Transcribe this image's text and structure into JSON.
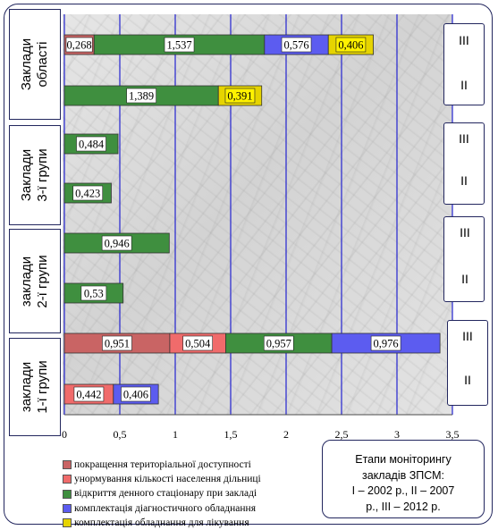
{
  "chart_data": {
    "type": "bar",
    "orientation": "horizontal",
    "stacked": true,
    "xlim": [
      0,
      3.5
    ],
    "x_ticks": [
      "0",
      "0,5",
      "1",
      "1,5",
      "2",
      "2,5",
      "3",
      "3,5"
    ],
    "grid": "vertical",
    "legend_position": "bottom-left",
    "series": [
      {
        "name": "покращення територіальної доступності",
        "color": "#c96464"
      },
      {
        "name": "унормування кількості населення дільниці",
        "color": "#f06b6b"
      },
      {
        "name": "відкриття денного стаціонару при закладі",
        "color": "#3f8f3f"
      },
      {
        "name": "комплектація діагностичного обладнання",
        "color": "#5c5cf0"
      },
      {
        "name": "комплектація обладнання для лікування",
        "color": "#e6d400"
      }
    ],
    "groups": [
      {
        "label": "Заклади області",
        "rows": [
          {
            "stage": "III",
            "segments": [
              {
                "series": 0,
                "value": 0.268,
                "label": "0,268"
              },
              {
                "series": 2,
                "value": 1.537,
                "label": "1,537"
              },
              {
                "series": 3,
                "value": 0.576,
                "label": "0,576"
              },
              {
                "series": 4,
                "value": 0.406,
                "label": "0,406"
              }
            ]
          },
          {
            "stage": "II",
            "segments": [
              {
                "series": 2,
                "value": 1.389,
                "label": "1,389"
              },
              {
                "series": 4,
                "value": 0.391,
                "label": "0,391"
              }
            ]
          }
        ]
      },
      {
        "label": "Заклади 3-ї групи",
        "rows": [
          {
            "stage": "III",
            "segments": [
              {
                "series": 2,
                "value": 0.484,
                "label": "0,484"
              }
            ]
          },
          {
            "stage": "II",
            "segments": [
              {
                "series": 2,
                "value": 0.423,
                "label": "0,423"
              }
            ]
          }
        ]
      },
      {
        "label": "заклади 2-ї групи",
        "rows": [
          {
            "stage": "III",
            "segments": [
              {
                "series": 2,
                "value": 0.946,
                "label": "0,946"
              }
            ]
          },
          {
            "stage": "II",
            "segments": [
              {
                "series": 2,
                "value": 0.53,
                "label": "0,53"
              }
            ]
          }
        ]
      },
      {
        "label": "заклади 1-ї групи",
        "rows": [
          {
            "stage": "III",
            "segments": [
              {
                "series": 0,
                "value": 0.951,
                "label": "0,951"
              },
              {
                "series": 1,
                "value": 0.504,
                "label": "0,504"
              },
              {
                "series": 2,
                "value": 0.957,
                "label": "0,957"
              },
              {
                "series": 3,
                "value": 0.976,
                "label": "0,976"
              }
            ]
          },
          {
            "stage": "II",
            "segments": [
              {
                "series": 1,
                "value": 0.442,
                "label": "0,442"
              },
              {
                "series": 3,
                "value": 0.406,
                "label": "0,406"
              }
            ]
          }
        ]
      }
    ]
  },
  "group_labels": {
    "oblast_line1": "Заклади",
    "oblast_line2": "області",
    "g3_line1": "Заклади",
    "g3_line2": "3-ї групи",
    "g2_line1": "заклади",
    "g2_line2": "2-ї групи",
    "g1_line1": "заклади",
    "g1_line2": "1-ї групи"
  },
  "stage_labels": {
    "oblast_iii": "III",
    "oblast_ii": "II",
    "g3_iii": "III",
    "g3_ii": "II",
    "g2_iii": "III",
    "g2_ii": "II",
    "g1_iii": "III",
    "g1_ii": "II"
  },
  "legend": {
    "item_1": "покращення територіальної доступності",
    "item_2": "унормування кількості населення дільниці",
    "item_3": "відкриття денного стаціонару при закладі",
    "item_4": "комплектація діагностичного обладнання",
    "item_5": "комплектація обладнання для лікування"
  },
  "note": {
    "line_1": "Етапи моніторингу",
    "line_2": "закладів ЗПСМ:",
    "line_3": "I – 2002 р., II – 2007",
    "line_4": "р., III – 2012 р."
  }
}
